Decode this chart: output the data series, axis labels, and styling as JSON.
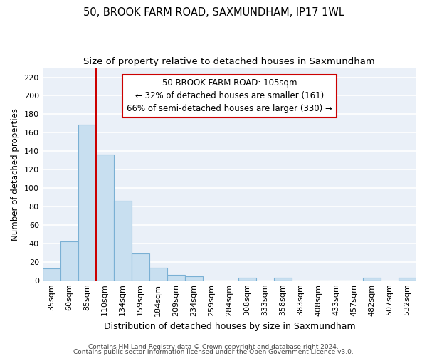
{
  "title": "50, BROOK FARM ROAD, SAXMUNDHAM, IP17 1WL",
  "subtitle": "Size of property relative to detached houses in Saxmundham",
  "xlabel": "Distribution of detached houses by size in Saxmundham",
  "ylabel": "Number of detached properties",
  "categories": [
    "35sqm",
    "60sqm",
    "85sqm",
    "110sqm",
    "134sqm",
    "159sqm",
    "184sqm",
    "209sqm",
    "234sqm",
    "259sqm",
    "284sqm",
    "308sqm",
    "333sqm",
    "358sqm",
    "383sqm",
    "408sqm",
    "433sqm",
    "457sqm",
    "482sqm",
    "507sqm",
    "532sqm"
  ],
  "values": [
    13,
    42,
    169,
    136,
    86,
    29,
    14,
    6,
    4,
    0,
    0,
    3,
    0,
    3,
    0,
    0,
    0,
    0,
    3,
    0,
    3
  ],
  "bar_color": "#c8dff0",
  "bar_edge_color": "#7ab0d4",
  "bar_edge_width": 0.8,
  "vline_color": "#cc0000",
  "vline_x": 2.5,
  "annotation_text": "50 BROOK FARM ROAD: 105sqm\n← 32% of detached houses are smaller (161)\n66% of semi-detached houses are larger (330) →",
  "annotation_box_color": "#ffffff",
  "annotation_box_edge": "#cc0000",
  "ylim": [
    0,
    230
  ],
  "yticks": [
    0,
    20,
    40,
    60,
    80,
    100,
    120,
    140,
    160,
    180,
    200,
    220
  ],
  "plot_bg_color": "#eaf0f8",
  "grid_color": "#ffffff",
  "footer1": "Contains HM Land Registry data © Crown copyright and database right 2024.",
  "footer2": "Contains public sector information licensed under the Open Government Licence v3.0.",
  "title_fontsize": 10.5,
  "subtitle_fontsize": 9.5,
  "xlabel_fontsize": 9,
  "ylabel_fontsize": 8.5,
  "tick_fontsize": 8,
  "annotation_fontsize": 8.5,
  "footer_fontsize": 6.5
}
